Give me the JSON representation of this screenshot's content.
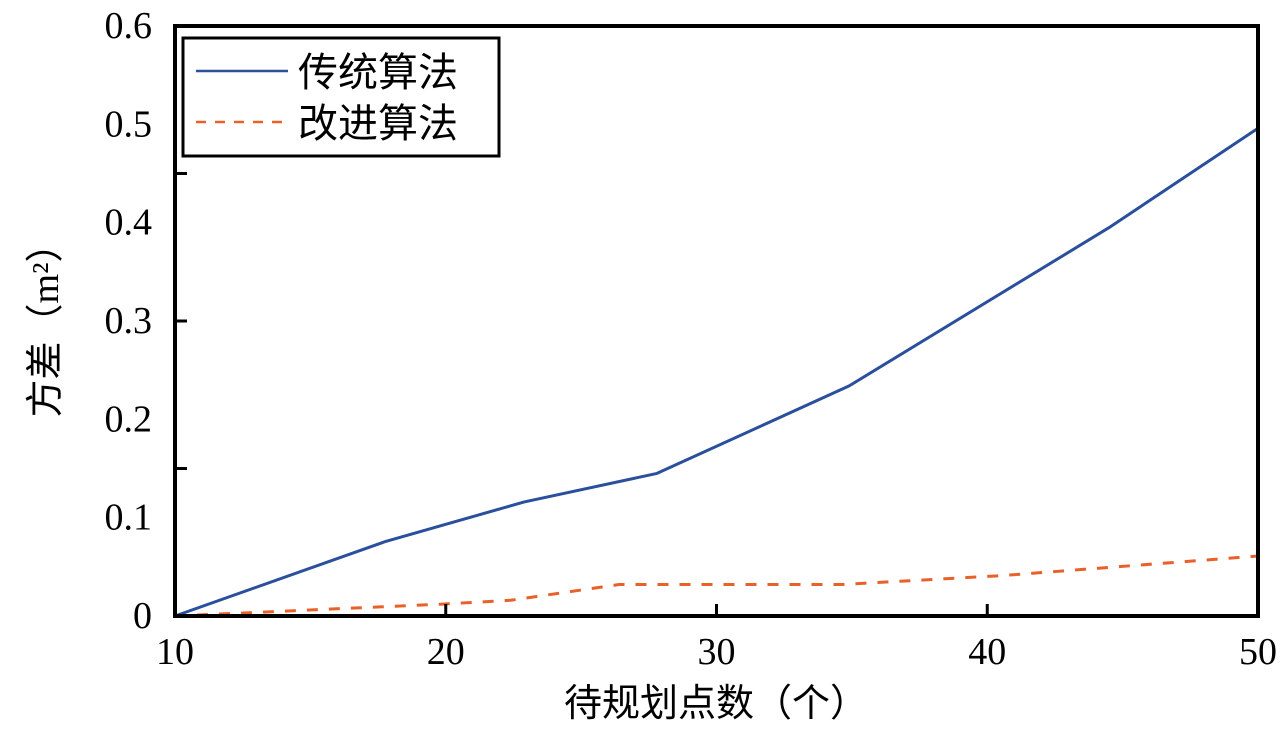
{
  "chart_data": {
    "type": "line",
    "title": "",
    "xlabel": "待规划点数（个）",
    "ylabel": "方差（m²）",
    "xlim": [
      10,
      50
    ],
    "ylim": [
      0,
      0.6
    ],
    "x_ticks": [
      10,
      20,
      30,
      40,
      50
    ],
    "y_tick_labels": [
      "0",
      "0.1",
      "0.2",
      "0.3",
      "0.4",
      "0.5",
      "0.6"
    ],
    "y_tick_marks": [
      0.15,
      0.3,
      0.45
    ],
    "grid": false,
    "legend_position": "upper left",
    "series": [
      {
        "name": "传统算法",
        "style": "solid",
        "color": "#2a4f9c",
        "x": [
          10,
          17.8,
          22.9,
          27.8,
          34.9,
          44.5,
          50
        ],
        "values": [
          0,
          0.076,
          0.116,
          0.145,
          0.234,
          0.395,
          0.496
        ]
      },
      {
        "name": "改进算法",
        "style": "dashed",
        "color": "#e8602a",
        "x": [
          10,
          19.8,
          22.4,
          26.4,
          34.6,
          40.5,
          50
        ],
        "values": [
          0,
          0.012,
          0.016,
          0.032,
          0.032,
          0.041,
          0.061
        ]
      }
    ]
  }
}
